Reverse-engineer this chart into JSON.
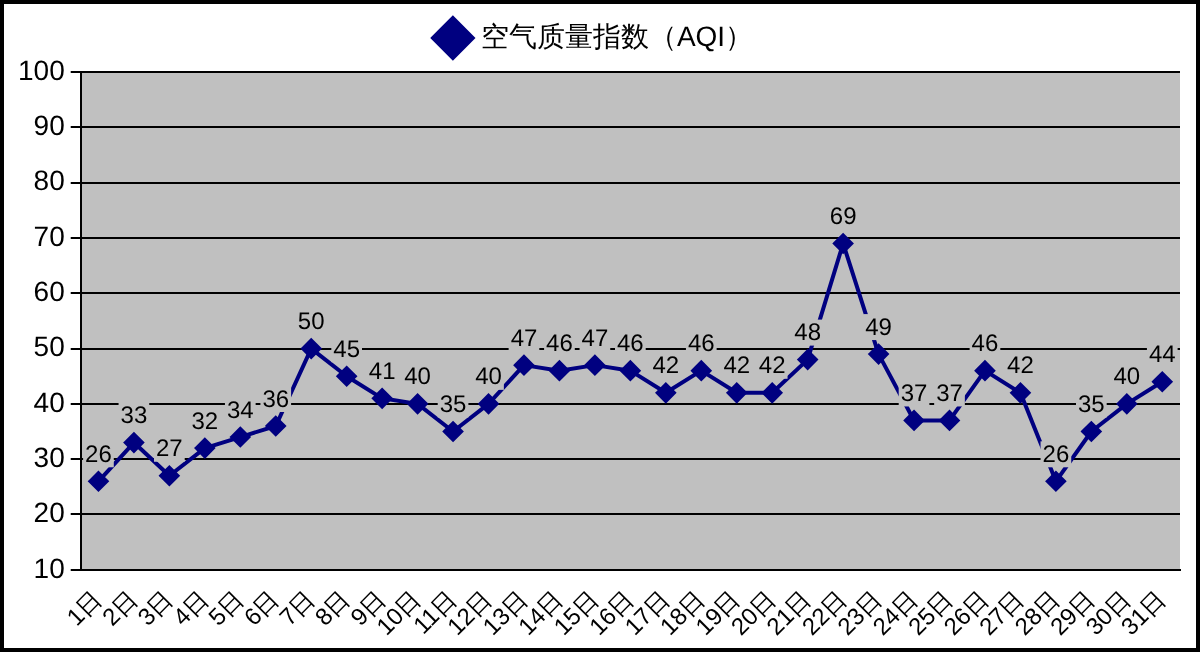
{
  "chart_data": {
    "type": "line",
    "categories": [
      "1日",
      "2日",
      "3日",
      "4日",
      "5日",
      "6日",
      "7日",
      "8日",
      "9日",
      "10日",
      "11日",
      "12日",
      "13日",
      "14日",
      "15日",
      "16日",
      "17日",
      "18日",
      "19日",
      "20日",
      "21日",
      "22日",
      "23日",
      "24日",
      "25日",
      "26日",
      "27日",
      "28日",
      "29日",
      "30日",
      "31日"
    ],
    "series": [
      {
        "name": "空气质量指数（AQI）",
        "color": "#000080",
        "values": [
          26,
          33,
          27,
          32,
          34,
          36,
          50,
          45,
          41,
          40,
          35,
          40,
          47,
          46,
          47,
          46,
          42,
          46,
          42,
          42,
          48,
          69,
          49,
          37,
          37,
          46,
          42,
          26,
          35,
          40,
          44
        ]
      }
    ],
    "ylim": [
      10,
      100
    ],
    "yticks": [
      10,
      20,
      30,
      40,
      50,
      60,
      70,
      80,
      90,
      100
    ],
    "grid": "y",
    "legend": "top",
    "marker": "diamond",
    "line_style": "solid",
    "data_labels": true
  }
}
